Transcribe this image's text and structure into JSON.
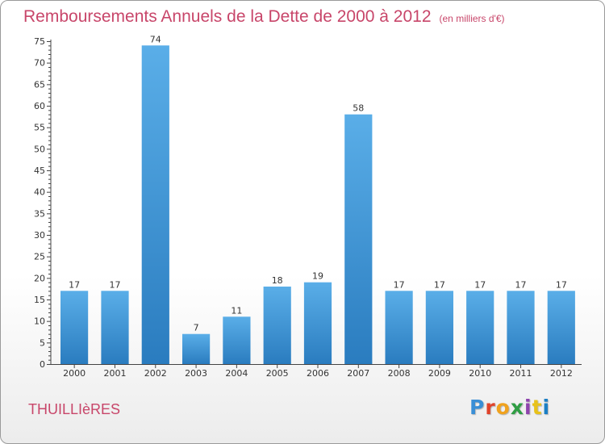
{
  "header": {
    "title": "Remboursements Annuels de la Dette de 2000 à 2012",
    "subtitle": "(en milliers d'€)"
  },
  "footer": {
    "town": "THUILLIèRES",
    "logo": [
      "P",
      "r",
      "o",
      "x",
      "i",
      "t",
      "i"
    ]
  },
  "colors": {
    "title": "#c8466a",
    "bar_top": "#5aaee8",
    "bar_bottom": "#2a7cbf",
    "logo": [
      "#3a8fd6",
      "#e0432b",
      "#f0a21e",
      "#2f9e44",
      "#8e44ad",
      "#e8c21a",
      "#1b7fc4"
    ]
  },
  "chart_data": {
    "type": "bar",
    "categories": [
      "2000",
      "2001",
      "2002",
      "2003",
      "2004",
      "2005",
      "2006",
      "2007",
      "2008",
      "2009",
      "2010",
      "2011",
      "2012"
    ],
    "values": [
      17,
      17,
      74,
      7,
      11,
      18,
      19,
      58,
      17,
      17,
      17,
      17,
      17
    ],
    "title": "Remboursements Annuels de la Dette de 2000 à 2012",
    "subtitle": "(en milliers d'€)",
    "xlabel": "",
    "ylabel": "",
    "ylim": [
      0,
      75
    ],
    "yticks": [
      0,
      5,
      10,
      15,
      20,
      25,
      30,
      35,
      40,
      45,
      50,
      55,
      60,
      65,
      70,
      75
    ],
    "grid": false,
    "data_labels": true
  }
}
